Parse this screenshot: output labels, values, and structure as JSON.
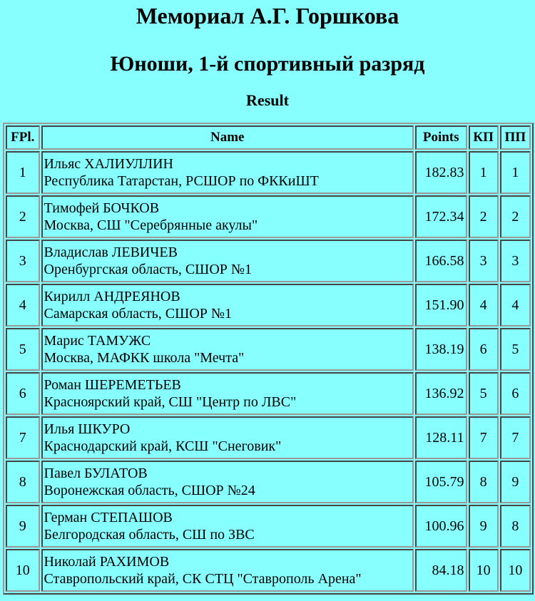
{
  "title": "Мемориал А.Г. Горшкова",
  "subtitle": "Юноши, 1-й спортивный разряд",
  "section": "Result",
  "headers": {
    "fpl": "FPl.",
    "name": "Name",
    "points": "Points",
    "kp": "КП",
    "pp": "ПП"
  },
  "rows": [
    {
      "fpl": "1",
      "name": "Ильяс ХАЛИУЛЛИН",
      "club": "Республика Татарстан, РСШОР по ФККиШТ",
      "points": "182.83",
      "kp": "1",
      "pp": "1"
    },
    {
      "fpl": "2",
      "name": "Тимофей БОЧКОВ",
      "club": "Москва, СШ \"Серебрянные акулы\"",
      "points": "172.34",
      "kp": "2",
      "pp": "2"
    },
    {
      "fpl": "3",
      "name": "Владислав ЛЕВИЧЕВ",
      "club": "Оренбургская область, СШОР №1",
      "points": "166.58",
      "kp": "3",
      "pp": "3"
    },
    {
      "fpl": "4",
      "name": "Кирилл АНДРЕЯНОВ",
      "club": "Самарская область, СШОР №1",
      "points": "151.90",
      "kp": "4",
      "pp": "4"
    },
    {
      "fpl": "5",
      "name": "Марис ТАМУЖС",
      "club": "Москва, МАФКК школа \"Мечта\"",
      "points": "138.19",
      "kp": "6",
      "pp": "5"
    },
    {
      "fpl": "6",
      "name": "Роман ШЕРЕМЕТЬЕВ",
      "club": "Красноярский край, СШ \"Центр по ЛВС\"",
      "points": "136.92",
      "kp": "5",
      "pp": "6"
    },
    {
      "fpl": "7",
      "name": "Илья ШКУРО",
      "club": "Краснодарский край, КСШ \"Снеговик\"",
      "points": "128.11",
      "kp": "7",
      "pp": "7"
    },
    {
      "fpl": "8",
      "name": "Павел БУЛАТОВ",
      "club": "Воронежская область, СШОР №24",
      "points": "105.79",
      "kp": "8",
      "pp": "9"
    },
    {
      "fpl": "9",
      "name": "Герман СТЕПАШОВ",
      "club": "Белгородская область, СШ по ЗВС",
      "points": "100.96",
      "kp": "9",
      "pp": "8"
    },
    {
      "fpl": "10",
      "name": "Николай РАХИМОВ",
      "club": "Ставропольский край, СК СТЦ \"Ставрополь Арена\"",
      "points": "84.18",
      "kp": "10",
      "pp": "10"
    }
  ]
}
